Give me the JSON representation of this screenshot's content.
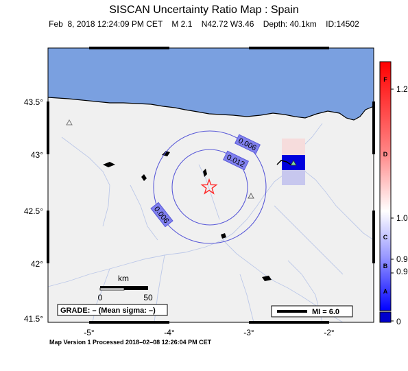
{
  "header": {
    "title": "SISCAN Uncertainty Ratio Map : Spain",
    "subtitle": "Feb  8, 2018 12:24:09 PM CET    M 2.1    N42.72 W3.46    Depth: 40.1km    ID:14502"
  },
  "map": {
    "lat_ticks": [
      "43.5°",
      "43°",
      "42.5°",
      "42°",
      "41.5°"
    ],
    "lon_ticks": [
      "-5°",
      "-4°",
      "-3°",
      "-2°"
    ],
    "contours": [
      "0.006",
      "0.012",
      "0.006"
    ],
    "km_label": "km",
    "km_ticks": [
      "0",
      "50"
    ],
    "grade_text": "GRADE: – (Mean sigma: –)",
    "mi_legend": "MI = 6.0",
    "colors": {
      "sea": "#7aa0e0",
      "land": "#f0f0f0",
      "contour": "#5a5ad8",
      "epicenter": "#ff2a2a",
      "cell_dark": "#0000dd",
      "cell_light": "#c7c7ee",
      "cell_pink": "#f6dcdc"
    },
    "markers": {
      "epicenter": "star-icon",
      "stations": [
        "triangle-icon",
        "triangle-icon",
        "triangle-icon"
      ]
    }
  },
  "colorbar": {
    "letters": [
      "F",
      "D",
      "C",
      "B",
      "A"
    ],
    "values": [
      "1.2",
      "1.0",
      "0.9",
      "0.9",
      "0"
    ]
  },
  "footer": "Map Version 1 Processed 2018–02–08 12:26:04 PM CET"
}
